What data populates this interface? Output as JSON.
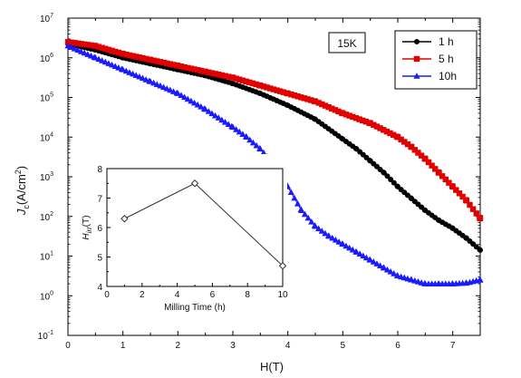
{
  "chart_data": [
    {
      "type": "scatter",
      "title": "",
      "xlabel": "H(T)",
      "ylabel_main": "J",
      "ylabel_sub": "c",
      "ylabel_units_pre": "(A/cm",
      "ylabel_units_sup": "2",
      "ylabel_units_post": ")",
      "annotation": "15K",
      "xlim": [
        0,
        7.5
      ],
      "ylim_log10": [
        -1,
        7
      ],
      "y_scale": "log",
      "x_ticks": [
        0,
        1,
        2,
        3,
        4,
        5,
        6,
        7
      ],
      "x_tick_labels": [
        "0",
        "1",
        "2",
        "3",
        "4",
        "5",
        "6",
        "7"
      ],
      "y_ticks_exp": [
        -1,
        0,
        1,
        2,
        3,
        4,
        5,
        6,
        7
      ],
      "y_tick_base": "10",
      "y_tick_exponents": [
        "-1",
        "0",
        "1",
        "2",
        "3",
        "4",
        "5",
        "6",
        "7"
      ],
      "legend_position": "top-right",
      "series": [
        {
          "name": "1 h",
          "color": "#000000",
          "marker": "circle",
          "x": [
            0,
            0.5,
            1,
            1.5,
            2,
            2.5,
            3,
            3.5,
            4,
            4.5,
            5,
            5.25,
            5.5,
            5.75,
            6,
            6.25,
            6.5,
            6.75,
            7,
            7.25,
            7.5
          ],
          "y_log10": [
            6.35,
            6.2,
            6.0,
            5.85,
            5.7,
            5.55,
            5.35,
            5.1,
            4.8,
            4.45,
            3.95,
            3.7,
            3.4,
            3.1,
            2.75,
            2.45,
            2.15,
            1.9,
            1.7,
            1.45,
            1.15
          ]
        },
        {
          "name": "5 h",
          "color": "#e00000",
          "marker": "square",
          "x": [
            0,
            0.5,
            1,
            1.5,
            2,
            2.5,
            3,
            3.5,
            4,
            4.5,
            5,
            5.5,
            6,
            6.25,
            6.5,
            6.75,
            7,
            7.25,
            7.5
          ],
          "y_log10": [
            6.4,
            6.3,
            6.1,
            5.95,
            5.8,
            5.65,
            5.5,
            5.3,
            5.1,
            4.9,
            4.6,
            4.35,
            4.0,
            3.75,
            3.45,
            3.1,
            2.75,
            2.4,
            1.95
          ]
        },
        {
          "name": "10h",
          "color": "#1a1aff",
          "marker": "triangle",
          "x": [
            0,
            0.5,
            1,
            1.5,
            2,
            2.5,
            3,
            3.25,
            3.5,
            3.75,
            4,
            4.25,
            4.5,
            4.75,
            5,
            5.25,
            5.5,
            5.75,
            6,
            6.25,
            6.5,
            6.75,
            7,
            7.25,
            7.5
          ],
          "y_log10": [
            6.3,
            6.0,
            5.7,
            5.4,
            5.1,
            4.7,
            4.25,
            4.0,
            3.7,
            3.3,
            2.75,
            2.15,
            1.75,
            1.5,
            1.3,
            1.1,
            0.9,
            0.7,
            0.5,
            0.4,
            0.3,
            0.3,
            0.3,
            0.32,
            0.4
          ]
        }
      ]
    },
    {
      "type": "line",
      "title": "",
      "xlabel": "Milling Time (h)",
      "ylabel_main": "H",
      "ylabel_sub": "irr",
      "ylabel_units": "(T)",
      "xlim": [
        0,
        10
      ],
      "ylim": [
        4,
        8
      ],
      "x_ticks": [
        "0",
        "2",
        "4",
        "6",
        "8",
        "10"
      ],
      "y_ticks": [
        "4",
        "5",
        "6",
        "7",
        "8"
      ],
      "x": [
        1,
        5,
        10
      ],
      "y": [
        6.3,
        7.5,
        4.7
      ]
    }
  ]
}
